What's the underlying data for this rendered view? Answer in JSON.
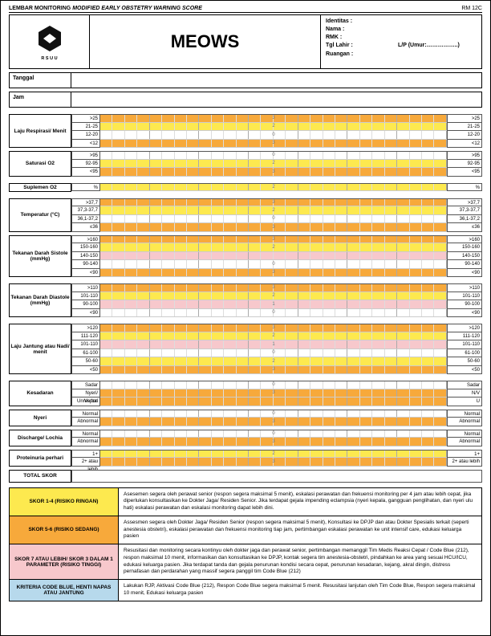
{
  "topbar": {
    "bold": "LEMBAR MONITORING ",
    "italic": "MODIFIED EARLY OBSTETRY WARNING SCORE",
    "code": "RM 12C"
  },
  "title": "MEOWS",
  "logo_sub": "R S U U",
  "ident": {
    "identitas": "Identitas :",
    "nama": "Nama :",
    "rmk": "RMK :",
    "tgl_label": "Tgl Lahir :",
    "tgl_right": "L/P  (Umur:……………..)",
    "ruangan": "Ruangan :"
  },
  "row_labels": {
    "tanggal": "Tanggal",
    "jam": "Jam",
    "total": "TOTAL SKOR"
  },
  "params": [
    {
      "name": "Laju Respirasi/ Menit",
      "sep": true,
      "rows": [
        {
          "range": ">25",
          "color": "orange",
          "score": "3",
          "r2": ">25"
        },
        {
          "range": "21-25",
          "color": "yellow",
          "score": "2",
          "r2": "21-25"
        },
        {
          "range": "12-20",
          "color": "white",
          "score": "0",
          "r2": "12-20"
        },
        {
          "range": "<12",
          "color": "orange",
          "score": "3",
          "r2": "<12"
        }
      ]
    },
    {
      "name": "Saturasi O2",
      "sep": false,
      "rows": [
        {
          "range": ">95",
          "color": "white",
          "score": "0",
          "r2": ">95"
        },
        {
          "range": "92-95",
          "color": "yellow",
          "score": "2",
          "r2": "92-95"
        },
        {
          "range": "<95",
          "color": "orange",
          "score": "3",
          "r2": "<95"
        }
      ]
    },
    {
      "name": "Suplemen O2",
      "sep": true,
      "rows": [
        {
          "range": "%",
          "color": "yellow",
          "score": "2",
          "r2": "%"
        }
      ]
    },
    {
      "name": "Temperatur (°C)",
      "sep": true,
      "rows": [
        {
          "range": ">37,7",
          "color": "orange",
          "score": "3",
          "r2": ">37,7"
        },
        {
          "range": "37,3-37,7",
          "color": "yellow",
          "score": "2",
          "r2": "37,3-37,7"
        },
        {
          "range": "36,1-37,2",
          "color": "white",
          "score": "0",
          "r2": "36,1-37,2"
        },
        {
          "range": "≤36",
          "color": "orange",
          "score": "3",
          "r2": "≤36"
        }
      ]
    },
    {
      "name": "Tekanan Darah Sistole (mmHg)",
      "sep": false,
      "rows": [
        {
          "range": ">160",
          "color": "orange",
          "score": "3",
          "r2": ">160"
        },
        {
          "range": "150-160",
          "color": "yellow",
          "score": "2",
          "r2": "150-160"
        },
        {
          "range": "140-150",
          "color": "pink",
          "score": "",
          "r2": "140-150"
        },
        {
          "range": "90-140",
          "color": "white",
          "score": "0",
          "r2": "90-140"
        },
        {
          "range": "<90",
          "color": "orange",
          "score": "3",
          "r2": "<90"
        }
      ]
    },
    {
      "name": "Tekanan Darah Diastole (mmHg)",
      "sep": true,
      "rows": [
        {
          "range": ">110",
          "color": "orange",
          "score": "3",
          "r2": ">110"
        },
        {
          "range": "101-110",
          "color": "yellow",
          "score": "2",
          "r2": "101-110"
        },
        {
          "range": "90-100",
          "color": "pink",
          "score": "1",
          "r2": "90-100"
        },
        {
          "range": "<90",
          "color": "white",
          "score": "0",
          "r2": "<90"
        }
      ]
    },
    {
      "name": "Laju Jantung atau Nadi/ menit",
      "sep": true,
      "rows": [
        {
          "range": ">120",
          "color": "orange",
          "score": "3",
          "r2": ">120"
        },
        {
          "range": "111-120",
          "color": "yellow",
          "score": "2",
          "r2": "111-120"
        },
        {
          "range": "101-110",
          "color": "pink",
          "score": "1",
          "r2": "101-110"
        },
        {
          "range": "61-100",
          "color": "white",
          "score": "0",
          "r2": "61-100"
        },
        {
          "range": "50-60",
          "color": "yellow",
          "score": "2",
          "r2": "50-60"
        },
        {
          "range": "<50",
          "color": "orange",
          "score": "3",
          "r2": "<50"
        }
      ]
    },
    {
      "name": "Kesadaran",
      "sep": true,
      "rows": [
        {
          "range": "Sadar",
          "color": "white",
          "score": "0",
          "r2": "Sadar"
        },
        {
          "range": "Nyeri/ Verbal",
          "color": "orange",
          "score": "3",
          "r2": "N/V"
        },
        {
          "range": "Unrespon",
          "color": "orange",
          "score": "",
          "r2": "U"
        }
      ]
    },
    {
      "name": "Nyeri",
      "sep": false,
      "rows": [
        {
          "range": "Normal",
          "color": "white",
          "score": "0",
          "r2": "Normal"
        },
        {
          "range": "Abnormal",
          "color": "orange",
          "score": "3",
          "r2": "Abnormal"
        }
      ]
    },
    {
      "name": "Discharge/ Lochia",
      "sep": false,
      "rows": [
        {
          "range": "Normal",
          "color": "white",
          "score": "0",
          "r2": "Normal"
        },
        {
          "range": "Abnormal",
          "color": "orange",
          "score": "3",
          "r2": "Abnormal"
        }
      ]
    },
    {
      "name": "Proteinuria perhari",
      "sep": false,
      "rows": [
        {
          "range": "1+",
          "color": "yellow",
          "score": "2",
          "r2": "1+"
        },
        {
          "range": "2+ atau lebih",
          "color": "orange",
          "score": "3",
          "r2": "2+ atau lebih"
        }
      ]
    }
  ],
  "guidance": [
    {
      "cls": "g-yellow",
      "label": "SKOR 1-4 (RISIKO RINGAN)",
      "text": "Asesemen segera oleh perawat senior (respon segera maksimal 5 menit), eskalasi perawatan dan frekuensi monitoring per 4 jam atau lebih cepat, jika diperlukan konsultasikan ke Dokter Jaga/ Residen Senior. Jika terdapat gejala impending eclampsia  (nyeri kepala, gangguan penglihatan, dan nyeri ulu hati) eskalasi perawatan dan eskalasi monitoring dapat lebih dini."
    },
    {
      "cls": "g-orange",
      "label": "SKOR 5-6 (RISIKO SEDANG)",
      "text": "Assesmen segera oleh Dokter Jaga/ Residen Senior (respon segera maksimal 5 menit), Konsultasi ke DPJP dan atau Dokter Spesialis terkait (seperti anestesia obstetri), eskalasi perawatan dan frekuensi monitoring tiap jam, pertimbangan eskalasi perawatan ke unit intensif care, edukasi keluarga pasien"
    },
    {
      "cls": "g-pink",
      "label": "SKOR 7 ATAU LEBIH/ SKOR 3 DALAM 1 PARAMETER (RISIKO TINGGI)",
      "text": "Resusitasi dan monitoring secara kontinyu oleh dokter jaga dan perawat senior, pertimbangan memanggil Tim Medis Reaksi Cepat / Code Blue (212), respon maksimal 10 menit, informasikan dan konsultasikan ke DPJP, kontak segera tim anestesia-obstetri, pindahkan ke area yang sesuai HCU/ICU, edukasi keluarga pasien. Jika terdapat tanda dan gejala penurunan kondisi secara cepat, penurunan kesadaran, kejang, akral dingin, distress pernafasan dan perdarahan yang massif segera panggil tim Code Blue (212)"
    },
    {
      "cls": "g-blue",
      "label": "KRITERIA CODE BLUE, HENTI NAPAS ATAU JANTUNG",
      "text": "Lakukan RJP, Aktivasi Code Blue (212), Respon Code Blue segera maksimal 5 menit. Resusitasi lanjutan oleh Tim Code Blue, Respon segera maksimal 10 menit, Edukasi keluarga pasien"
    }
  ],
  "colors": {
    "orange": "#f7a93b",
    "yellow": "#fde94f",
    "pink": "#f7c8cc",
    "blue": "#b7d9ec"
  }
}
